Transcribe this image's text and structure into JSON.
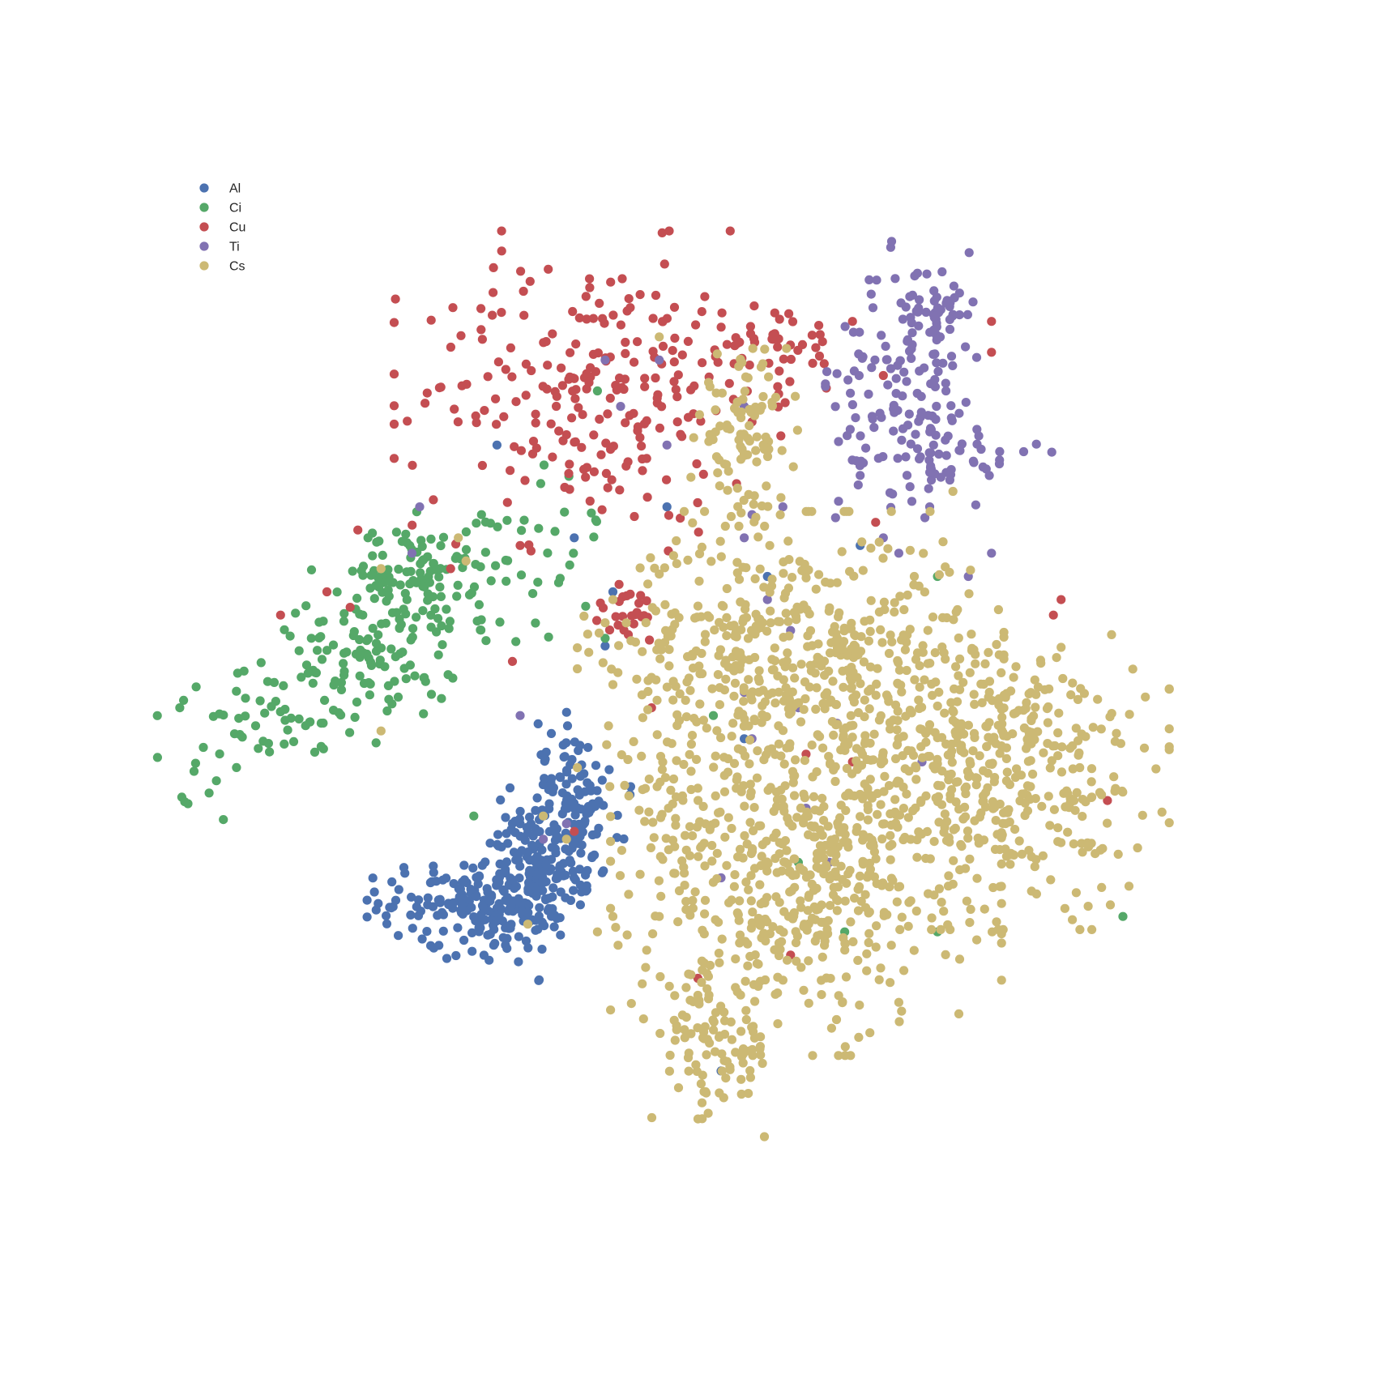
{
  "chart_data": {
    "type": "scatter",
    "title": "",
    "xlabel": "",
    "ylabel": "",
    "axes_visible": false,
    "grid": false,
    "legend_position": "top-left",
    "xlim": [
      -60,
      70
    ],
    "ylim": [
      -60,
      70
    ],
    "series": [
      {
        "name": "Al",
        "color": "#4c72b0",
        "clusters": [
          {
            "center": [
              -19.0,
              -19.0
            ],
            "spread": [
              7.0,
              4.0
            ],
            "n": 240,
            "angle": 0.9
          },
          {
            "center": [
              -27.0,
              -23.0
            ],
            "spread": [
              6.0,
              2.5
            ],
            "n": 140,
            "angle": 0.0
          },
          {
            "center": [
              -14.0,
              -8.0
            ],
            "spread": [
              2.5,
              4.0
            ],
            "n": 60,
            "angle": 0.5
          }
        ],
        "points": [
          [
            -14,
            24
          ],
          [
            -24,
            36
          ],
          [
            -9,
            17
          ],
          [
            -10,
            10
          ],
          [
            -2,
            28
          ],
          [
            11,
            19
          ],
          [
            23,
            23
          ],
          [
            8,
            -2
          ],
          [
            5,
            -45
          ]
        ]
      },
      {
        "name": "Ci",
        "color": "#55a868",
        "clusters": [
          {
            "center": [
              -39.0,
              10.0
            ],
            "spread": [
              14.0,
              4.5
            ],
            "n": 250,
            "angle": 0.55
          },
          {
            "center": [
              -36.0,
              20.0
            ],
            "spread": [
              5.0,
              3.0
            ],
            "n": 60,
            "angle": 0.3
          }
        ],
        "points": [
          [
            -10,
            11
          ],
          [
            -26,
            27
          ],
          [
            -11,
            43
          ],
          [
            4,
            1
          ],
          [
            15,
            -18
          ],
          [
            21,
            -27
          ],
          [
            33,
            -27
          ],
          [
            57,
            -25
          ],
          [
            33,
            19
          ],
          [
            -27,
            -12
          ]
        ]
      },
      {
        "name": "Cu",
        "color": "#c44e52",
        "clusters": [
          {
            "center": [
              -12.0,
              43.0
            ],
            "spread": [
              11.0,
              9.0
            ],
            "n": 230,
            "angle": 0.0
          },
          {
            "center": [
              10.0,
              49.0
            ],
            "spread": [
              6.0,
              3.0
            ],
            "n": 50,
            "angle": 0.0
          },
          {
            "center": [
              -7.0,
              14.0
            ],
            "spread": [
              2.5,
              2.0
            ],
            "n": 25,
            "angle": 0.0
          }
        ],
        "points": [
          [
            -43,
            15
          ],
          [
            -46,
            17
          ],
          [
            -52,
            14
          ],
          [
            -42,
            25
          ],
          [
            -21,
            23
          ],
          [
            -30,
            20
          ],
          [
            -19,
            40
          ],
          [
            9,
            39
          ],
          [
            7,
            31
          ],
          [
            25,
            26
          ],
          [
            22,
            52
          ],
          [
            -14,
            -14
          ],
          [
            -22,
            8
          ],
          [
            -4,
            2
          ],
          [
            16,
            -4
          ],
          [
            40,
            48
          ],
          [
            40,
            52
          ],
          [
            26,
            45
          ],
          [
            48,
            14
          ],
          [
            49,
            16
          ],
          [
            55,
            -10
          ],
          [
            2,
            -33
          ],
          [
            14,
            -30
          ],
          [
            22,
            -5
          ]
        ]
      },
      {
        "name": "Ti",
        "color": "#8172b2",
        "clusters": [
          {
            "center": [
              30.0,
              45.0
            ],
            "spread": [
              5.0,
              8.0
            ],
            "n": 150,
            "angle": 0.0
          },
          {
            "center": [
              33.0,
              53.0
            ],
            "spread": [
              1.5,
              2.5
            ],
            "n": 30,
            "angle": -0.6
          },
          {
            "center": [
              34.0,
              34.0
            ],
            "spread": [
              6.0,
              2.5
            ],
            "n": 40,
            "angle": 0.0
          }
        ],
        "points": [
          [
            -10,
            47
          ],
          [
            -3,
            47
          ],
          [
            -8,
            41
          ],
          [
            -34,
            28
          ],
          [
            8,
            41
          ],
          [
            9,
            27
          ],
          [
            -2,
            36
          ],
          [
            11,
            16
          ],
          [
            14,
            12
          ],
          [
            13,
            28
          ],
          [
            8,
            24
          ],
          [
            26,
            24
          ],
          [
            28,
            22
          ],
          [
            40,
            22
          ],
          [
            37,
            19
          ],
          [
            5,
            -20
          ],
          [
            8,
            4
          ],
          [
            20,
            0
          ],
          [
            31,
            -5
          ],
          [
            16,
            -11
          ],
          [
            19,
            -18
          ],
          [
            9,
            -2
          ],
          [
            15,
            2
          ],
          [
            -35,
            22
          ],
          [
            -21,
            1
          ],
          [
            -18,
            -15
          ],
          [
            -15,
            -13
          ]
        ]
      },
      {
        "name": "Cs",
        "color": "#ccb974",
        "clusters": [
          {
            "center": [
              14.0,
              9.0
            ],
            "spread": [
              12.0,
              8.0
            ],
            "n": 500,
            "angle": 0.0
          },
          {
            "center": [
              40.0,
              -6.0
            ],
            "spread": [
              10.0,
              9.0
            ],
            "n": 450,
            "angle": 0.0
          },
          {
            "center": [
              16.0,
              -20.0
            ],
            "spread": [
              11.0,
              10.0
            ],
            "n": 500,
            "angle": 0.0
          },
          {
            "center": [
              -1.0,
              -10.0
            ],
            "spread": [
              4.0,
              6.0
            ],
            "n": 60,
            "angle": 0.0
          },
          {
            "center": [
              8.0,
              37.0
            ],
            "spread": [
              3.0,
              5.0
            ],
            "n": 100,
            "angle": 0.0
          },
          {
            "center": [
              4.0,
              -42.0
            ],
            "spread": [
              4.0,
              5.0
            ],
            "n": 100,
            "angle": 0.0
          }
        ],
        "points": [
          [
            -9,
            5
          ],
          [
            -10,
            13
          ],
          [
            -9,
            16
          ],
          [
            -20,
            -26
          ],
          [
            -11,
            -27
          ],
          [
            -39,
            -1
          ],
          [
            -28,
            21
          ],
          [
            -29,
            24
          ],
          [
            -39,
            20
          ],
          [
            -3,
            50
          ],
          [
            30,
            19
          ],
          [
            35,
            30
          ],
          [
            -15,
            -15
          ],
          [
            -18,
            -12
          ],
          [
            -9,
            -25
          ],
          [
            -3,
            -25
          ]
        ]
      }
    ]
  }
}
